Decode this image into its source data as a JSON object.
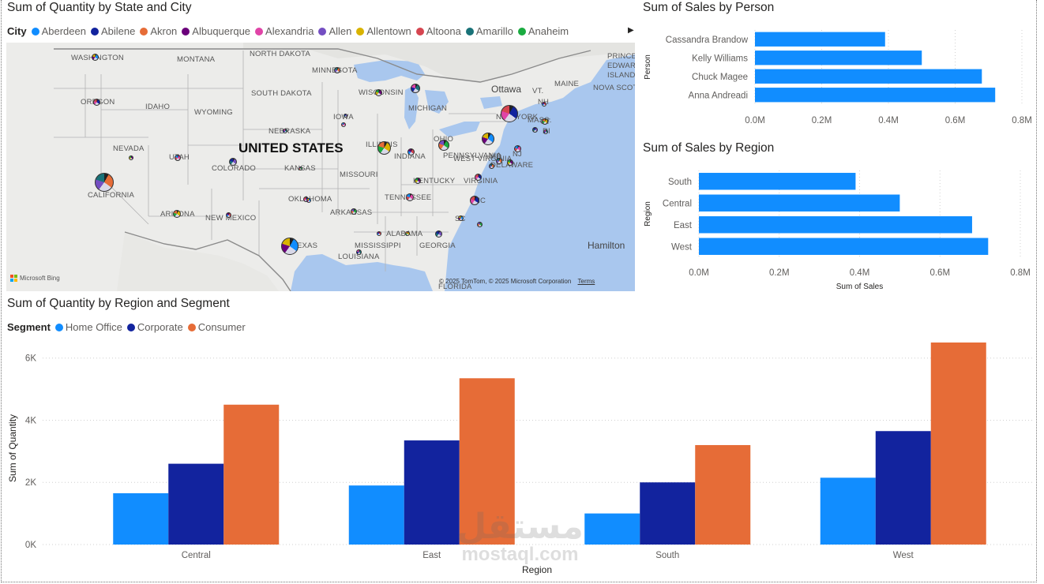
{
  "map_visual": {
    "title": "Sum of Quantity by State and City",
    "legend_title": "City",
    "legend_items": [
      {
        "label": "Aberdeen",
        "color": "#118DFF"
      },
      {
        "label": "Abilene",
        "color": "#12239E"
      },
      {
        "label": "Akron",
        "color": "#E66C37"
      },
      {
        "label": "Albuquerque",
        "color": "#6B007B"
      },
      {
        "label": "Alexandria",
        "color": "#E044A7"
      },
      {
        "label": "Allen",
        "color": "#744EC2"
      },
      {
        "label": "Allentown",
        "color": "#D9B300"
      },
      {
        "label": "Altoona",
        "color": "#D64550"
      },
      {
        "label": "Amarillo",
        "color": "#197278"
      },
      {
        "label": "Anaheim",
        "color": "#1AAB40"
      }
    ],
    "legend_more": "▶",
    "state_labels": [
      "WASHINGTON",
      "MONTANA",
      "NORTH DAKOTA",
      "MINNESOTA",
      "OREGON",
      "IDAHO",
      "WYOMING",
      "SOUTH DAKOTA",
      "WISCONSIN",
      "MICHIGAN",
      "NEBRASKA",
      "IOWA",
      "NEVADA",
      "UTAH",
      "COLORADO",
      "KANSAS",
      "ILLINOIS",
      "INDIANA",
      "OHIO",
      "PENNSYLVANIA",
      "NEW YORK",
      "CALIFORNIA",
      "MISSOURI",
      "KENTUCKY",
      "WEST VIRGINIA",
      "VIRGINIA",
      "OKLAHOMA",
      "TENNESSEE",
      "NC",
      "ARIZONA",
      "NEW MEXICO",
      "ARKANSAS",
      "SC",
      "TEXAS",
      "MISSISSIPPI",
      "ALABAMA",
      "GEORGIA",
      "LOUISIANA",
      "FLORIDA",
      "MAINE",
      "VT.",
      "NH",
      "MASS.",
      "CT",
      "RI",
      "NJ",
      "MD",
      "DELAWARE",
      "NOVA SCOTIA",
      "PRINCE EDWARD ISLAND"
    ],
    "country_label": "UNITED STATES",
    "city_labels": [
      "Ottawa",
      "Hamilton"
    ],
    "attribution": "© 2025 TomTom, © 2025 Microsoft Corporation",
    "attribution_link": "Terms",
    "provider": "Microsoft Bing"
  },
  "person_chart": {
    "title": "Sum of Sales by Person"
  },
  "region_chart": {
    "title": "Sum of Sales by Region"
  },
  "segment_chart": {
    "title": "Sum of Quantity by Region and Segment",
    "legend_title": "Segment"
  },
  "watermark": {
    "arabic": "مستقل",
    "latin": "mostaql.com"
  },
  "chart_data": [
    {
      "type": "bar",
      "orientation": "horizontal",
      "title": "Sum of Sales by Person",
      "ylabel": "Person",
      "xlabel": "",
      "categories": [
        "Cassandra Brandow",
        "Kelly Williams",
        "Chuck Magee",
        "Anna Andreadi"
      ],
      "values": [
        0.39,
        0.5,
        0.68,
        0.72
      ],
      "value_unit": "M",
      "xlim": [
        0,
        0.8
      ],
      "xticks": [
        "0.0M",
        "0.2M",
        "0.4M",
        "0.6M",
        "0.8M"
      ],
      "color": "#118DFF",
      "grid": true
    },
    {
      "type": "bar",
      "orientation": "horizontal",
      "title": "Sum of Sales by Region",
      "ylabel": "Region",
      "xlabel": "Sum of Sales",
      "categories": [
        "South",
        "Central",
        "East",
        "West"
      ],
      "values": [
        0.39,
        0.5,
        0.68,
        0.72
      ],
      "value_unit": "M",
      "xlim": [
        0,
        0.8
      ],
      "xticks": [
        "0.0M",
        "0.2M",
        "0.4M",
        "0.6M",
        "0.8M"
      ],
      "color": "#118DFF",
      "grid": true
    },
    {
      "type": "bar",
      "orientation": "vertical",
      "title": "Sum of Quantity by Region and Segment",
      "xlabel": "Region",
      "ylabel": "Sum of Quantity",
      "categories": [
        "Central",
        "East",
        "South",
        "West"
      ],
      "series": [
        {
          "name": "Home Office",
          "color": "#118DFF",
          "values": [
            1650,
            1900,
            1000,
            2150
          ]
        },
        {
          "name": "Corporate",
          "color": "#12239E",
          "values": [
            2600,
            3350,
            2000,
            3650
          ]
        },
        {
          "name": "Consumer",
          "color": "#E66C37",
          "values": [
            4500,
            5350,
            3200,
            6500
          ]
        }
      ],
      "ylim": [
        0,
        6500
      ],
      "yticks": [
        "0K",
        "2K",
        "4K",
        "6K"
      ],
      "grid": true,
      "legend_position": "top-left"
    },
    {
      "type": "scatter",
      "title": "Sum of Quantity by State and City",
      "note_kind": "map pie markers",
      "series": [
        {
          "values": []
        }
      ]
    }
  ]
}
